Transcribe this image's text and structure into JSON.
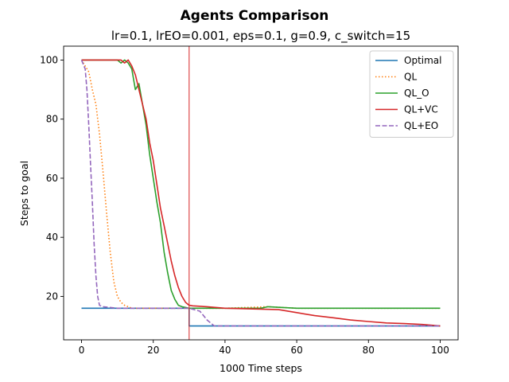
{
  "chart_data": {
    "type": "line",
    "title": "Agents Comparison",
    "subtitle": "lr=0.1, lrEO=0.001, eps=0.1, g=0.9, c_switch=15",
    "xlabel": "1000 Time steps",
    "ylabel": "Steps to goal",
    "xlim": [
      -5,
      105
    ],
    "ylim": [
      5.3,
      104.7
    ],
    "x_ticks": [
      0,
      20,
      40,
      60,
      80,
      100
    ],
    "y_ticks": [
      20,
      40,
      60,
      80,
      100
    ],
    "legend_position": "top-right",
    "grid": false,
    "vline": {
      "x": 30,
      "color": "#d62728"
    },
    "series": [
      {
        "name": "Optimal",
        "color": "#1f77b4",
        "style": "solid",
        "points": [
          [
            0,
            16
          ],
          [
            30,
            16
          ],
          [
            30,
            10
          ],
          [
            100,
            10
          ]
        ]
      },
      {
        "name": "QL",
        "color": "#ff7f0e",
        "style": "dotted",
        "points": [
          [
            0,
            100
          ],
          [
            1,
            98
          ],
          [
            2,
            96
          ],
          [
            3,
            90
          ],
          [
            4,
            85
          ],
          [
            5,
            75
          ],
          [
            6,
            62
          ],
          [
            7,
            48
          ],
          [
            8,
            35
          ],
          [
            9,
            25
          ],
          [
            10,
            20
          ],
          [
            11,
            18
          ],
          [
            12,
            17
          ],
          [
            13,
            16.5
          ],
          [
            14,
            16
          ],
          [
            20,
            16
          ],
          [
            30,
            16
          ],
          [
            40,
            16
          ],
          [
            52,
            16.5
          ],
          [
            60,
            16
          ],
          [
            70,
            16
          ],
          [
            80,
            16
          ],
          [
            90,
            16
          ],
          [
            100,
            16
          ]
        ]
      },
      {
        "name": "QL_O",
        "color": "#2ca02c",
        "style": "solid",
        "points": [
          [
            0,
            100
          ],
          [
            10,
            100
          ],
          [
            11,
            99
          ],
          [
            12,
            100
          ],
          [
            13,
            99
          ],
          [
            14,
            97
          ],
          [
            15,
            90
          ],
          [
            16,
            92
          ],
          [
            17,
            85
          ],
          [
            18,
            78
          ],
          [
            19,
            68
          ],
          [
            20,
            60
          ],
          [
            21,
            52
          ],
          [
            22,
            45
          ],
          [
            23,
            35
          ],
          [
            24,
            28
          ],
          [
            25,
            22
          ],
          [
            26,
            19
          ],
          [
            27,
            17
          ],
          [
            28,
            16.5
          ],
          [
            30,
            16
          ],
          [
            40,
            16
          ],
          [
            50,
            16
          ],
          [
            52,
            16.5
          ],
          [
            60,
            16
          ],
          [
            70,
            16
          ],
          [
            80,
            16
          ],
          [
            90,
            16
          ],
          [
            100,
            16
          ]
        ]
      },
      {
        "name": "QL+VC",
        "color": "#d62728",
        "style": "solid",
        "points": [
          [
            0,
            100
          ],
          [
            11,
            100
          ],
          [
            12,
            99
          ],
          [
            13,
            100
          ],
          [
            14,
            98
          ],
          [
            15,
            95
          ],
          [
            16,
            90
          ],
          [
            17,
            85
          ],
          [
            18,
            80
          ],
          [
            19,
            72
          ],
          [
            20,
            66
          ],
          [
            21,
            58
          ],
          [
            22,
            50
          ],
          [
            23,
            44
          ],
          [
            24,
            38
          ],
          [
            25,
            32
          ],
          [
            26,
            27
          ],
          [
            27,
            23
          ],
          [
            28,
            20
          ],
          [
            29,
            18
          ],
          [
            30,
            17
          ],
          [
            31,
            16.8
          ],
          [
            35,
            16.5
          ],
          [
            40,
            16
          ],
          [
            50,
            15.7
          ],
          [
            55,
            15.5
          ],
          [
            60,
            14.5
          ],
          [
            65,
            13.5
          ],
          [
            70,
            12.8
          ],
          [
            75,
            12
          ],
          [
            80,
            11.5
          ],
          [
            85,
            11
          ],
          [
            90,
            10.8
          ],
          [
            95,
            10.5
          ],
          [
            100,
            10
          ]
        ]
      },
      {
        "name": "QL+EO",
        "color": "#9467bd",
        "style": "dashed",
        "points": [
          [
            0,
            100
          ],
          [
            1,
            97
          ],
          [
            1.5,
            90
          ],
          [
            2,
            78
          ],
          [
            2.5,
            65
          ],
          [
            3,
            52
          ],
          [
            3.5,
            38
          ],
          [
            4,
            27
          ],
          [
            4.5,
            20
          ],
          [
            5,
            17
          ],
          [
            6,
            16.5
          ],
          [
            10,
            16
          ],
          [
            20,
            16
          ],
          [
            30,
            16
          ],
          [
            33,
            15
          ],
          [
            35,
            12
          ],
          [
            37,
            10
          ],
          [
            45,
            10
          ],
          [
            60,
            10
          ],
          [
            80,
            10
          ],
          [
            100,
            10
          ]
        ]
      }
    ]
  }
}
